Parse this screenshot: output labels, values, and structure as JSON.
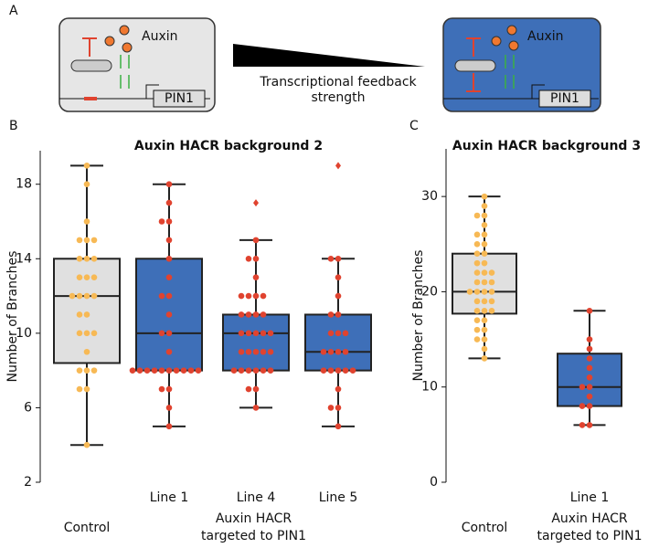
{
  "diagram": {
    "panel_label": "A",
    "left_auxin": "Auxin",
    "left_gene": "PIN1",
    "arrow_label": [
      "Transcriptional feedback",
      "strength"
    ],
    "right_auxin": "Auxin",
    "right_gene": "PIN1"
  },
  "chart_data": [
    {
      "type": "box",
      "panel_label": "B",
      "title": "Auxin HACR background 2",
      "ylabel": "Number of Branches",
      "categories": [
        "Control",
        "Line 1",
        "Line 4",
        "Line 5"
      ],
      "group_label": [
        "Auxin HACR",
        "targeted to PIN1"
      ],
      "ylim": [
        2,
        19.8
      ],
      "yticks": [
        2,
        6,
        10,
        14,
        18
      ],
      "box_colors": [
        "#e0e0e0",
        "#3e6fb8",
        "#3e6fb8",
        "#3e6fb8"
      ],
      "point_colors": [
        "#f7b955",
        "#e0432f",
        "#e0432f",
        "#e0432f"
      ],
      "whisker_low": [
        4,
        5,
        6,
        5
      ],
      "q1": [
        8.4,
        8,
        8,
        8
      ],
      "median": [
        12,
        10,
        10,
        9
      ],
      "q3": [
        14,
        14,
        11,
        11
      ],
      "whisker_high": [
        19,
        18,
        15,
        14
      ],
      "outliers": [
        [],
        [],
        [
          17
        ],
        [
          19
        ]
      ],
      "points": [
        [
          19,
          18,
          16,
          15,
          15,
          15,
          14,
          14,
          14,
          13,
          13,
          13,
          12,
          12,
          12,
          12,
          11,
          11,
          10,
          10,
          10,
          9,
          8,
          8,
          8,
          7,
          7,
          4
        ],
        [
          18,
          17,
          16,
          16,
          15,
          14,
          13,
          12,
          12,
          11,
          10,
          10,
          9,
          8,
          8,
          8,
          8,
          8,
          8,
          8,
          8,
          8,
          8,
          7,
          7,
          6,
          5
        ],
        [
          15,
          14,
          14,
          13,
          12,
          12,
          12,
          12,
          11,
          11,
          11,
          11,
          10,
          10,
          10,
          10,
          10,
          9,
          9,
          9,
          9,
          9,
          8,
          8,
          8,
          8,
          8,
          8,
          7,
          7,
          6
        ],
        [
          14,
          14,
          13,
          12,
          11,
          11,
          10,
          10,
          10,
          9,
          9,
          9,
          9,
          8,
          8,
          8,
          8,
          8,
          7,
          6,
          6,
          5
        ]
      ]
    },
    {
      "type": "box",
      "panel_label": "C",
      "title": "Auxin HACR background 3",
      "ylabel": "Number of Branches",
      "categories": [
        "Control",
        "Line 1"
      ],
      "group_label": [
        "Auxin HACR",
        "targeted to PIN1"
      ],
      "ylim": [
        0,
        35
      ],
      "yticks": [
        0,
        10,
        20,
        30
      ],
      "box_colors": [
        "#e0e0e0",
        "#3e6fb8"
      ],
      "point_colors": [
        "#f7b955",
        "#e0432f"
      ],
      "whisker_low": [
        13,
        6
      ],
      "q1": [
        17.7,
        8
      ],
      "median": [
        20,
        10
      ],
      "q3": [
        24,
        13.5
      ],
      "whisker_high": [
        30,
        18
      ],
      "outliers": [
        [],
        []
      ],
      "points": [
        [
          30,
          29,
          28,
          28,
          27,
          26,
          26,
          25,
          25,
          24,
          24,
          23,
          23,
          22,
          22,
          22,
          21,
          21,
          21,
          20,
          20,
          20,
          20,
          19,
          19,
          19,
          18,
          18,
          18,
          17,
          17,
          16,
          16,
          15,
          15,
          14,
          13
        ],
        [
          18,
          15,
          14,
          13,
          12,
          11,
          10,
          10,
          9,
          8,
          8,
          6,
          6
        ]
      ]
    }
  ]
}
